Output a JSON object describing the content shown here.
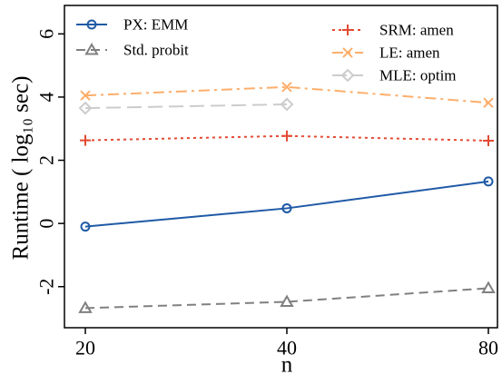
{
  "chart_data": {
    "type": "line",
    "xlabel": "n",
    "ylabel": "Runtime ( log₁₀ sec)",
    "x": [
      "20",
      "40",
      "80"
    ],
    "xticks": [
      "20",
      "40",
      "80"
    ],
    "yticks": [
      "-2",
      "0",
      "2",
      "4",
      "6"
    ],
    "ylim": [
      -3.3,
      6.9
    ],
    "grid": false,
    "legend": "top",
    "series": [
      {
        "name": "PX: EMM",
        "values": [
          -0.1,
          0.48,
          1.33
        ],
        "color": "#1f5aa6",
        "marker": "circle",
        "dash": "solid"
      },
      {
        "name": "Std. probit",
        "values": [
          -2.68,
          -2.48,
          -2.05
        ],
        "color": "#808080",
        "marker": "triangle",
        "dash": "dashed"
      },
      {
        "name": "SRM: amen",
        "values": [
          2.63,
          2.77,
          2.62
        ],
        "color": "#e34a33",
        "marker": "plus",
        "dash": "dotted"
      },
      {
        "name": "LE: amen",
        "values": [
          4.05,
          4.32,
          3.82
        ],
        "color": "#fdae6b",
        "marker": "x",
        "dash": "dashdot"
      },
      {
        "name": "MLE: optim",
        "values": [
          3.65,
          3.77,
          null
        ],
        "color": "#cccccc",
        "marker": "diamond",
        "dash": "longdash"
      }
    ]
  }
}
